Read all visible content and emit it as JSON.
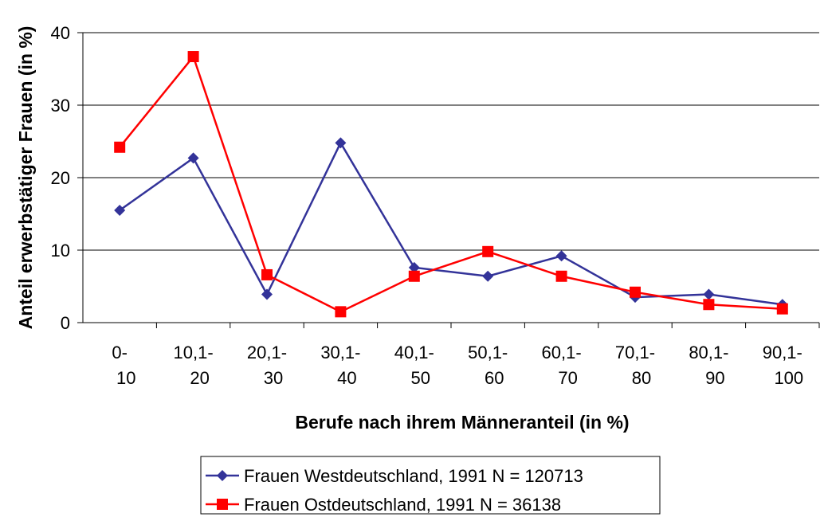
{
  "chart_data": {
    "type": "line",
    "xlabel": "Berufe nach ihrem Männeranteil (in %)",
    "ylabel": "Anteil erwerbstätiger Frauen (in %)",
    "categories": [
      "0-10",
      "10,1-20",
      "20,1-30",
      "30,1-40",
      "40,1-50",
      "50,1-60",
      "60,1-70",
      "70,1-80",
      "80,1-90",
      "90,1-100"
    ],
    "series": [
      {
        "name": "Frauen Westdeutschland, 1991 N = 120713",
        "color": "#333399",
        "marker": "diamond",
        "values": [
          15.5,
          22.7,
          3.9,
          24.8,
          7.6,
          6.4,
          9.2,
          3.5,
          3.9,
          2.5
        ]
      },
      {
        "name": "Frauen Ostdeutschland, 1991 N = 36138",
        "color": "#ff0000",
        "marker": "square",
        "values": [
          24.2,
          36.7,
          6.6,
          1.5,
          6.4,
          9.8,
          6.4,
          4.2,
          2.5,
          1.9
        ]
      }
    ],
    "ylim": [
      0,
      40
    ],
    "yticks": [
      0,
      10,
      20,
      30,
      40
    ],
    "grid": true
  }
}
